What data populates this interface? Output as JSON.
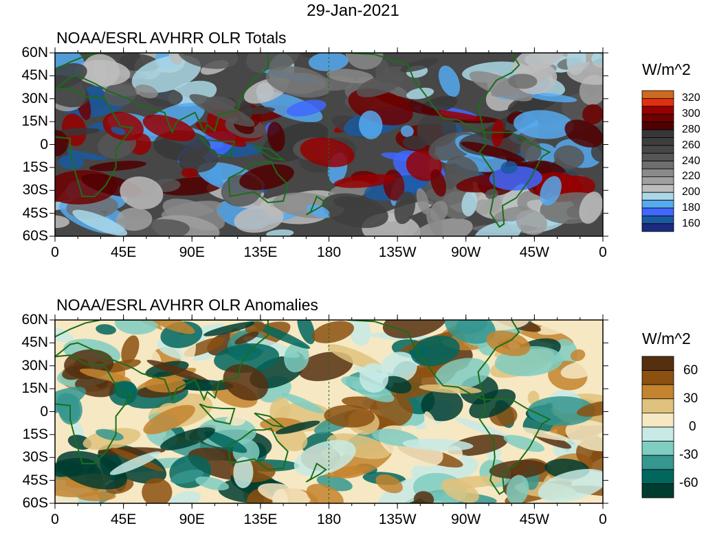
{
  "title": "29-Jan-2021",
  "panels": [
    {
      "title": "NOAA/ESRL AVHRR OLR Totals",
      "colorbar": {
        "units": "W/m^2",
        "labels": [
          "320",
          "300",
          "280",
          "260",
          "240",
          "220",
          "200",
          "180",
          "160"
        ],
        "colors": [
          "#cc6a1f",
          "#e03010",
          "#960000",
          "#6e0000",
          "#500000",
          "#373737",
          "#3e3e3e",
          "#474747",
          "#565656",
          "#6e6e6e",
          "#8a8a8a",
          "#a0a0a0",
          "#bdbdbd",
          "#acd8e6",
          "#56aaf0",
          "#4068ff",
          "#1a5aa0",
          "#1c2a80"
        ]
      }
    },
    {
      "title": "NOAA/ESRL AVHRR OLR Anomalies",
      "colorbar": {
        "units": "W/m^2",
        "labels": [
          "60",
          "30",
          "0",
          "-30",
          "-60"
        ],
        "colors": [
          "#553010",
          "#8c5010",
          "#c4842f",
          "#dfc27d",
          "#f6e8c3",
          "#c7eae5",
          "#80cdc1",
          "#35978f",
          "#01665e",
          "#003c30"
        ]
      }
    }
  ],
  "lat_labels": [
    "60N",
    "45N",
    "30N",
    "15N",
    "0",
    "15S",
    "30S",
    "45S",
    "60S"
  ],
  "lon_labels": [
    "0",
    "45E",
    "90E",
    "135E",
    "180",
    "135W",
    "90W",
    "45W",
    "0"
  ],
  "coast_color": "#1a6e1a"
}
